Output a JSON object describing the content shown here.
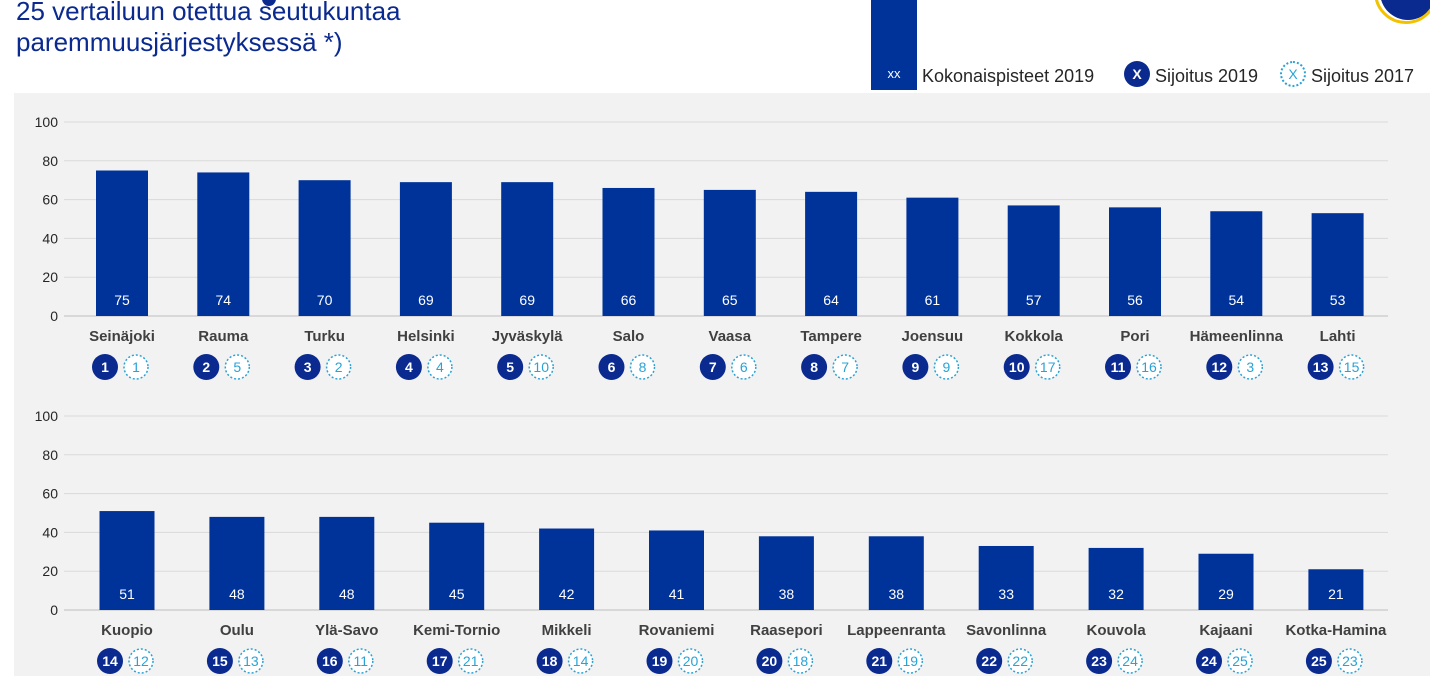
{
  "title": {
    "line1": "25 vertailuun otettua seutukuntaa",
    "line2": "paremmuusjärjestyksessä *)"
  },
  "legend": {
    "bar_symbol": "xx",
    "bar_label": "Kokonaispisteet 2019",
    "rank2019_symbol": "X",
    "rank2019_label": "Sijoitus 2019",
    "rank2017_symbol": "X",
    "rank2017_label": "Sijoitus 2017"
  },
  "colors": {
    "bar": "#003399",
    "rank2019": "#0a2a8f",
    "rank2017": "#29a3d6",
    "panel": "#f2f2f2"
  },
  "chart_data": [
    {
      "type": "bar",
      "ylim": [
        0,
        100
      ],
      "yticks": [
        0,
        20,
        40,
        60,
        80,
        100
      ],
      "grid": true,
      "categories": [
        "Seinäjoki",
        "Rauma",
        "Turku",
        "Helsinki",
        "Jyväskylä",
        "Salo",
        "Vaasa",
        "Tampere",
        "Joensuu",
        "Kokkola",
        "Pori",
        "Hämeenlinna",
        "Lahti"
      ],
      "values": [
        75,
        74,
        70,
        69,
        69,
        66,
        65,
        64,
        61,
        57,
        56,
        54,
        53
      ],
      "rank_2019": [
        1,
        2,
        3,
        4,
        5,
        6,
        7,
        8,
        9,
        10,
        11,
        12,
        13
      ],
      "rank_2017": [
        1,
        5,
        2,
        4,
        10,
        8,
        6,
        7,
        9,
        17,
        16,
        3,
        15
      ]
    },
    {
      "type": "bar",
      "ylim": [
        0,
        100
      ],
      "yticks": [
        0,
        20,
        40,
        60,
        80,
        100
      ],
      "grid": true,
      "categories": [
        "Kuopio",
        "Oulu",
        "Ylä-Savo",
        "Kemi-Tornio",
        "Mikkeli",
        "Rovaniemi",
        "Raasepori",
        "Lappeenranta",
        "Savonlinna",
        "Kouvola",
        "Kajaani",
        "Kotka-Hamina"
      ],
      "values": [
        51,
        48,
        48,
        45,
        42,
        41,
        38,
        38,
        33,
        32,
        29,
        21
      ],
      "rank_2019": [
        14,
        15,
        16,
        17,
        18,
        19,
        20,
        21,
        22,
        23,
        24,
        25
      ],
      "rank_2017": [
        12,
        13,
        11,
        21,
        14,
        20,
        18,
        19,
        22,
        24,
        25,
        23
      ]
    }
  ]
}
